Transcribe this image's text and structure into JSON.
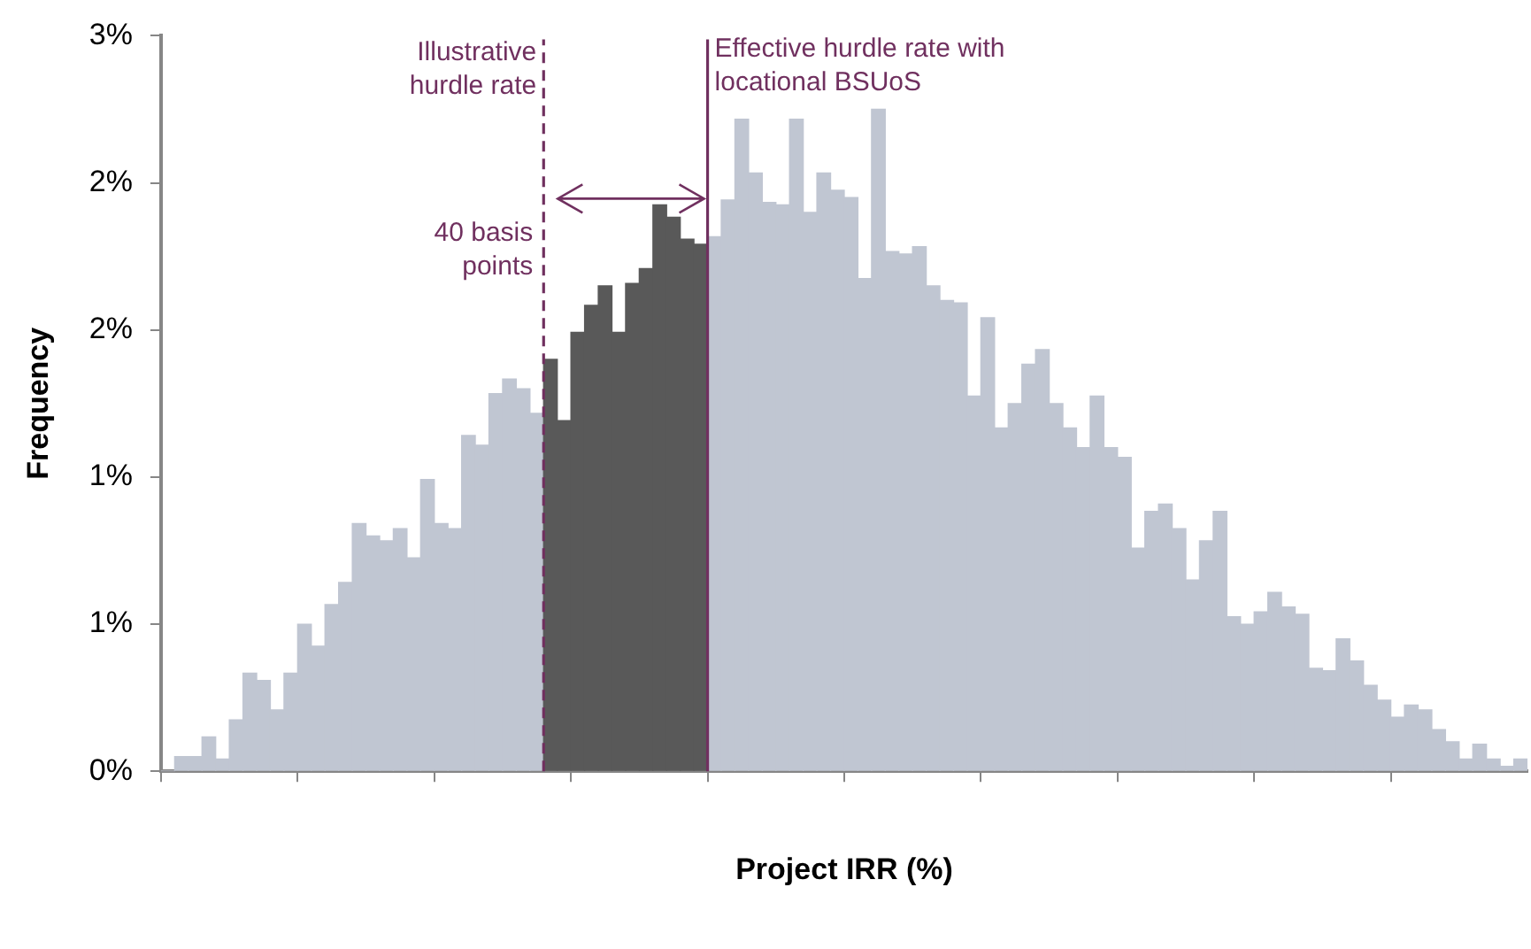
{
  "chart_data": {
    "type": "bar",
    "xlabel": "Project IRR (%)",
    "ylabel": "Frequency",
    "categories": [
      null,
      null,
      null,
      null,
      null,
      null,
      null,
      null,
      null,
      null,
      null,
      null,
      null,
      null,
      null,
      null,
      null,
      null,
      null,
      null,
      null,
      null,
      null,
      null,
      null,
      null,
      null,
      null,
      null,
      null,
      null,
      null,
      null,
      null,
      null,
      null,
      null,
      null,
      null,
      null,
      null,
      null,
      null,
      null,
      null,
      null,
      null,
      null,
      null,
      null,
      null,
      null,
      null,
      null,
      null,
      null,
      null,
      null,
      null,
      null,
      null,
      null,
      null,
      null,
      null,
      null,
      null,
      null,
      null,
      null,
      null,
      null,
      null,
      null,
      null,
      null,
      null,
      null,
      null,
      null,
      null,
      null,
      null,
      null,
      null,
      null,
      null,
      null,
      null,
      null,
      null,
      null,
      null,
      null,
      null,
      null,
      null,
      null,
      null,
      null
    ],
    "values": [
      0,
      0.06,
      0.06,
      0.14,
      0.05,
      0.21,
      0.4,
      0.37,
      0.25,
      0.4,
      0.6,
      0.51,
      0.68,
      0.77,
      1.01,
      0.96,
      0.94,
      0.99,
      0.87,
      1.19,
      1.01,
      0.99,
      1.37,
      1.33,
      1.54,
      1.6,
      1.56,
      1.46,
      1.68,
      1.43,
      1.79,
      1.9,
      1.98,
      1.79,
      1.99,
      2.05,
      2.31,
      2.26,
      2.17,
      2.15,
      2.18,
      2.33,
      2.66,
      2.44,
      2.32,
      2.31,
      2.66,
      2.28,
      2.44,
      2.37,
      2.34,
      2.01,
      2.7,
      2.12,
      2.11,
      2.14,
      1.98,
      1.92,
      1.91,
      1.53,
      1.85,
      1.4,
      1.5,
      1.66,
      1.72,
      1.5,
      1.4,
      1.32,
      1.53,
      1.32,
      1.28,
      0.91,
      1.06,
      1.09,
      0.99,
      0.78,
      0.94,
      1.06,
      0.63,
      0.6,
      0.65,
      0.73,
      0.67,
      0.64,
      0.42,
      0.41,
      0.54,
      0.45,
      0.35,
      0.29,
      0.22,
      0.27,
      0.25,
      0.17,
      0.12,
      0.05,
      0.11,
      0.05,
      0.02,
      0.05
    ],
    "colors": [
      "#c0c6d2",
      "#c0c6d2",
      "#c0c6d2",
      "#c0c6d2",
      "#c0c6d2",
      "#c0c6d2",
      "#c0c6d2",
      "#c0c6d2",
      "#c0c6d2",
      "#c0c6d2",
      "#c0c6d2",
      "#c0c6d2",
      "#c0c6d2",
      "#c0c6d2",
      "#c0c6d2",
      "#c0c6d2",
      "#c0c6d2",
      "#c0c6d2",
      "#c0c6d2",
      "#c0c6d2",
      "#c0c6d2",
      "#c0c6d2",
      "#c0c6d2",
      "#c0c6d2",
      "#c0c6d2",
      "#c0c6d2",
      "#c0c6d2",
      "#c0c6d2",
      "#595959",
      "#595959",
      "#595959",
      "#595959",
      "#595959",
      "#595959",
      "#595959",
      "#595959",
      "#595959",
      "#595959",
      "#595959",
      "#595959",
      "#c0c6d2",
      "#c0c6d2",
      "#c0c6d2",
      "#c0c6d2",
      "#c0c6d2",
      "#c0c6d2",
      "#c0c6d2",
      "#c0c6d2",
      "#c0c6d2",
      "#c0c6d2",
      "#c0c6d2",
      "#c0c6d2",
      "#c0c6d2",
      "#c0c6d2",
      "#c0c6d2",
      "#c0c6d2",
      "#c0c6d2",
      "#c0c6d2",
      "#c0c6d2",
      "#c0c6d2",
      "#c0c6d2",
      "#c0c6d2",
      "#c0c6d2",
      "#c0c6d2",
      "#c0c6d2",
      "#c0c6d2",
      "#c0c6d2",
      "#c0c6d2",
      "#c0c6d2",
      "#c0c6d2",
      "#c0c6d2",
      "#c0c6d2",
      "#c0c6d2",
      "#c0c6d2",
      "#c0c6d2",
      "#c0c6d2",
      "#c0c6d2",
      "#c0c6d2",
      "#c0c6d2",
      "#c0c6d2",
      "#c0c6d2",
      "#c0c6d2",
      "#c0c6d2",
      "#c0c6d2",
      "#c0c6d2",
      "#c0c6d2",
      "#c0c6d2",
      "#c0c6d2",
      "#c0c6d2",
      "#c0c6d2",
      "#c0c6d2",
      "#c0c6d2",
      "#c0c6d2",
      "#c0c6d2",
      "#c0c6d2",
      "#c0c6d2",
      "#c0c6d2",
      "#c0c6d2",
      "#c0c6d2",
      "#c0c6d2"
    ],
    "ylim": [
      0,
      3
    ],
    "yticks": [
      {
        "value": 0,
        "label": "0%"
      },
      {
        "value": 0.6,
        "label": "1%"
      },
      {
        "value": 1.2,
        "label": "1%"
      },
      {
        "value": 1.8,
        "label": "2%"
      },
      {
        "value": 2.4,
        "label": "2%"
      },
      {
        "value": 3,
        "label": "3%"
      }
    ],
    "tick_labels": "y",
    "grid": false,
    "legend": false,
    "ref_lines": [
      {
        "axis": "x",
        "label": "Illustrative hurdle rate",
        "line_style": "dashed",
        "color": "#70305f"
      },
      {
        "axis": "x",
        "label": "Effective hurdle rate with locational BSUoS",
        "line_style": "solid",
        "color": "#70305f"
      }
    ],
    "annotations": [
      "40 basis points"
    ]
  }
}
